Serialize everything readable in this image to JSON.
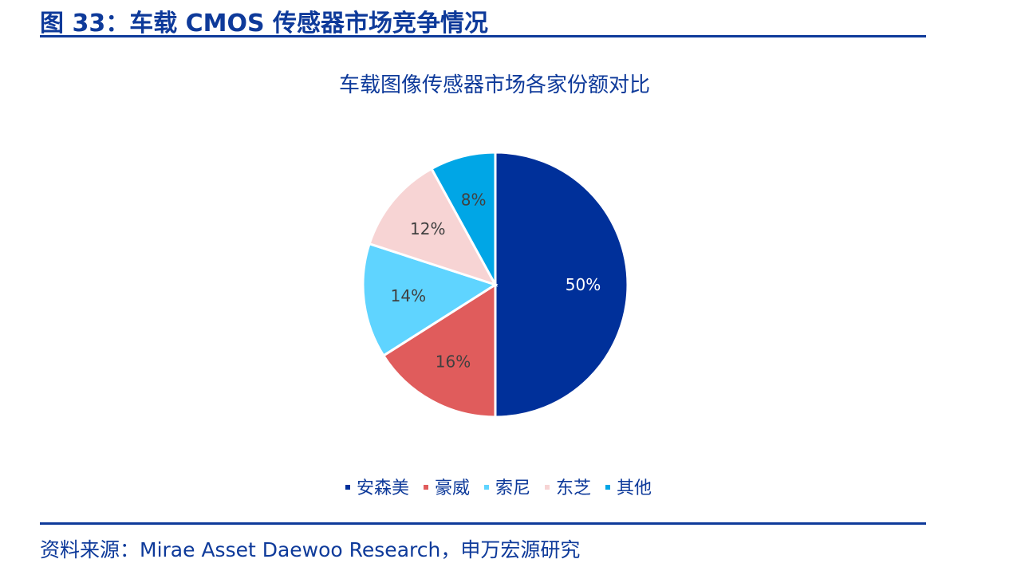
{
  "figure": {
    "title": "图 33：车载 CMOS 传感器市场竞争情况"
  },
  "chart_data": {
    "type": "pie",
    "title": "车载图像传感器市场各家份额对比",
    "categories": [
      "安森美",
      "豪威",
      "索尼",
      "东芝",
      "其他"
    ],
    "values": [
      50,
      16,
      14,
      12,
      8
    ],
    "data_labels": [
      "50%",
      "16%",
      "14%",
      "12%",
      "8%"
    ],
    "colors": [
      "#00309a",
      "#e05c5c",
      "#5fd4ff",
      "#f7d4d4",
      "#00a6e6"
    ],
    "label_colors": [
      "#ffffff",
      "#404040",
      "#404040",
      "#404040",
      "#404040"
    ],
    "legend_position": "bottom"
  },
  "source": {
    "text": "资料来源：Mirae Asset Daewoo Research，申万宏源研究"
  }
}
